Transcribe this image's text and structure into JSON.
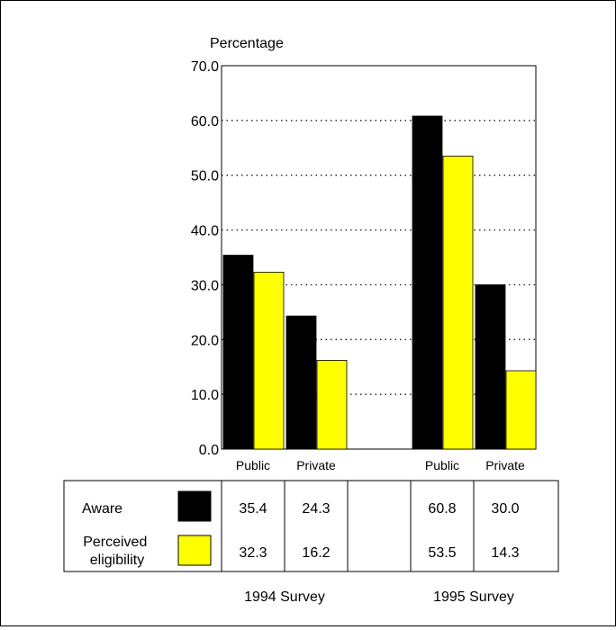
{
  "chart_data": {
    "type": "bar",
    "ylabel": "Percentage",
    "ylim": [
      0,
      70
    ],
    "yticks": [
      "0.0",
      "10.0",
      "20.0",
      "30.0",
      "40.0",
      "50.0",
      "60.0",
      "70.0"
    ],
    "grid": "dotted horizontal",
    "groups": [
      {
        "survey": "1994 Survey",
        "categories": [
          "Public",
          "Private"
        ]
      },
      {
        "survey": "1995 Survey",
        "categories": [
          "Public",
          "Private"
        ]
      }
    ],
    "series": [
      {
        "name": "Aware",
        "color": "#000000",
        "values": [
          35.4,
          24.3,
          60.8,
          30.0
        ],
        "labels": [
          "35.4",
          "24.3",
          "60.8",
          "30.0"
        ]
      },
      {
        "name": "Perceived eligibility",
        "name_lines": [
          "Perceived",
          "eligibility"
        ],
        "color": "#ffff00",
        "values": [
          32.3,
          16.2,
          53.5,
          14.3
        ],
        "labels": [
          "32.3",
          "16.2",
          "53.5",
          "14.3"
        ]
      }
    ]
  }
}
